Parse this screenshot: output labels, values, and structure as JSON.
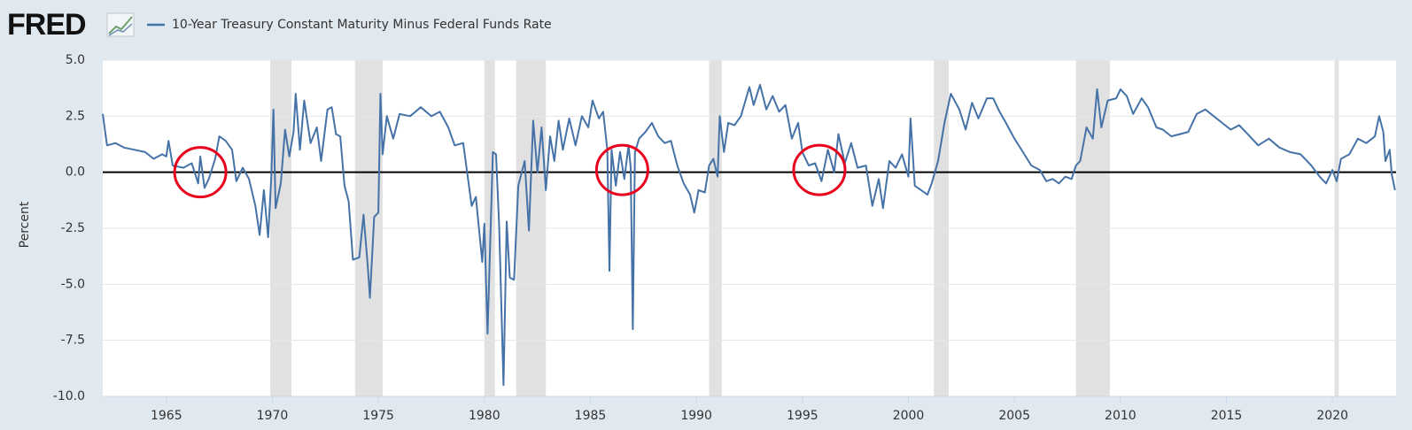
{
  "logo": "FRED",
  "chart_data": {
    "type": "line",
    "title": "10-Year Treasury Constant Maturity Minus Federal Funds Rate",
    "y_label": "Percent",
    "xlim": [
      1962,
      2023
    ],
    "xticks": [
      1965,
      1970,
      1975,
      1980,
      1985,
      1990,
      1995,
      2000,
      2005,
      2010,
      2015,
      2020
    ],
    "ylim": [
      -10,
      5
    ],
    "yticks": [
      {
        "value": 5,
        "label": "5.0"
      },
      {
        "value": 2.5,
        "label": "2.5"
      },
      {
        "value": 0,
        "label": "0.0"
      },
      {
        "value": -2.5,
        "label": "-2.5"
      },
      {
        "value": -5,
        "label": "-5.0"
      },
      {
        "value": -7.5,
        "label": "-7.5"
      },
      {
        "value": -10,
        "label": "-10.0"
      }
    ],
    "grid": true,
    "zero_line": true,
    "recession_color": "#e1e1e1",
    "recessions": [
      [
        1969.9,
        1970.9
      ],
      [
        1973.9,
        1975.2
      ],
      [
        1980.0,
        1980.5
      ],
      [
        1981.5,
        1982.9
      ],
      [
        1990.6,
        1991.2
      ],
      [
        2001.2,
        2001.9
      ],
      [
        2007.9,
        2009.5
      ],
      [
        2020.1,
        2020.3
      ]
    ],
    "highlights": [
      {
        "x": 1966.6,
        "y": 0.0
      },
      {
        "x": 1986.5,
        "y": 0.1
      },
      {
        "x": 1995.8,
        "y": 0.1
      }
    ],
    "highlight_color": "#e8001c",
    "series": [
      {
        "name": "10-Year Treasury Constant Maturity Minus Federal Funds Rate",
        "color": "#4572a7",
        "x": [
          1962.0,
          1962.2,
          1962.6,
          1963.0,
          1963.5,
          1964.0,
          1964.4,
          1964.8,
          1965.0,
          1965.1,
          1965.3,
          1965.8,
          1966.2,
          1966.5,
          1966.6,
          1966.8,
          1967.0,
          1967.3,
          1967.5,
          1967.8,
          1968.1,
          1968.3,
          1968.6,
          1968.9,
          1969.2,
          1969.4,
          1969.6,
          1969.8,
          1969.95,
          1970.05,
          1970.15,
          1970.4,
          1970.6,
          1970.8,
          1971.0,
          1971.1,
          1971.3,
          1971.5,
          1971.8,
          1972.1,
          1972.3,
          1972.6,
          1972.8,
          1973.0,
          1973.2,
          1973.4,
          1973.6,
          1973.8,
          1974.1,
          1974.3,
          1974.5,
          1974.6,
          1974.8,
          1975.0,
          1975.1,
          1975.2,
          1975.4,
          1975.7,
          1976.0,
          1976.5,
          1977.0,
          1977.5,
          1977.9,
          1978.3,
          1978.6,
          1979.0,
          1979.4,
          1979.6,
          1979.9,
          1980.0,
          1980.15,
          1980.4,
          1980.55,
          1980.7,
          1980.9,
          1981.05,
          1981.2,
          1981.4,
          1981.6,
          1981.9,
          1982.1,
          1982.3,
          1982.5,
          1982.7,
          1982.9,
          1983.1,
          1983.3,
          1983.5,
          1983.7,
          1984.0,
          1984.3,
          1984.6,
          1984.9,
          1985.1,
          1985.4,
          1985.6,
          1985.8,
          1985.9,
          1986.0,
          1986.2,
          1986.4,
          1986.6,
          1986.8,
          1986.9,
          1987.0,
          1987.1,
          1987.3,
          1987.6,
          1987.9,
          1988.2,
          1988.5,
          1988.8,
          1989.1,
          1989.4,
          1989.7,
          1989.9,
          1990.1,
          1990.4,
          1990.6,
          1990.8,
          1991.0,
          1991.1,
          1991.3,
          1991.5,
          1991.8,
          1992.1,
          1992.5,
          1992.7,
          1993.0,
          1993.3,
          1993.6,
          1993.9,
          1994.2,
          1994.5,
          1994.8,
          1995.0,
          1995.3,
          1995.6,
          1995.9,
          1996.2,
          1996.5,
          1996.7,
          1997.0,
          1997.3,
          1997.6,
          1998.0,
          1998.3,
          1998.6,
          1998.8,
          1999.1,
          1999.4,
          1999.7,
          2000.0,
          2000.1,
          2000.3,
          2000.6,
          2000.9,
          2001.1,
          2001.4,
          2001.7,
          2002.0,
          2002.4,
          2002.7,
          2003.0,
          2003.3,
          2003.7,
          2004.0,
          2004.3,
          2004.6,
          2005.0,
          2005.4,
          2005.8,
          2006.2,
          2006.5,
          2006.8,
          2007.1,
          2007.4,
          2007.7,
          2007.9,
          2008.1,
          2008.4,
          2008.7,
          2008.9,
          2009.1,
          2009.4,
          2009.8,
          2010.0,
          2010.3,
          2010.6,
          2011.0,
          2011.3,
          2011.7,
          2012.0,
          2012.4,
          2012.8,
          2013.2,
          2013.6,
          2014.0,
          2014.4,
          2014.8,
          2015.2,
          2015.6,
          2016.0,
          2016.5,
          2017.0,
          2017.5,
          2018.0,
          2018.5,
          2019.0,
          2019.4,
          2019.7,
          2020.0,
          2020.2,
          2020.4,
          2020.8,
          2021.2,
          2021.6,
          2022.0,
          2022.2,
          2022.4,
          2022.5,
          2022.7,
          2022.8,
          2022.95
        ],
        "values": [
          2.6,
          1.2,
          1.3,
          1.1,
          1.0,
          0.9,
          0.6,
          0.8,
          0.7,
          1.4,
          0.3,
          0.2,
          0.4,
          -0.5,
          0.7,
          -0.7,
          -0.3,
          0.6,
          1.6,
          1.4,
          1.0,
          -0.4,
          0.2,
          -0.3,
          -1.5,
          -2.8,
          -0.8,
          -2.9,
          -0.2,
          2.8,
          -1.6,
          -0.5,
          1.9,
          0.7,
          1.8,
          3.5,
          1.0,
          3.2,
          1.3,
          2.0,
          0.5,
          2.8,
          2.9,
          1.7,
          1.6,
          -0.6,
          -1.3,
          -3.9,
          -3.8,
          -1.9,
          -4.2,
          -5.6,
          -2.0,
          -1.8,
          3.5,
          0.8,
          2.5,
          1.5,
          2.6,
          2.5,
          2.9,
          2.5,
          2.7,
          2.0,
          1.2,
          1.3,
          -1.5,
          -1.1,
          -4.0,
          -2.3,
          -7.2,
          0.9,
          0.8,
          -2.5,
          -9.5,
          -2.2,
          -4.7,
          -4.8,
          -0.6,
          0.5,
          -2.6,
          2.3,
          0.0,
          2.0,
          -0.8,
          1.6,
          0.5,
          2.3,
          1.0,
          2.4,
          1.2,
          2.5,
          2.0,
          3.2,
          2.4,
          2.7,
          1.0,
          -4.4,
          1.0,
          -0.6,
          0.9,
          -0.3,
          1.2,
          0.2,
          -7.0,
          0.9,
          1.5,
          1.8,
          2.2,
          1.6,
          1.3,
          1.4,
          0.3,
          -0.5,
          -1.0,
          -1.8,
          -0.8,
          -0.9,
          0.3,
          0.6,
          -0.2,
          2.5,
          0.9,
          2.2,
          2.1,
          2.5,
          3.8,
          3.0,
          3.9,
          2.8,
          3.4,
          2.7,
          3.0,
          1.5,
          2.2,
          0.9,
          0.3,
          0.4,
          -0.4,
          1.0,
          0.0,
          1.7,
          0.4,
          1.3,
          0.2,
          0.3,
          -1.5,
          -0.3,
          -1.6,
          0.5,
          0.2,
          0.8,
          -0.2,
          2.4,
          -0.6,
          -0.8,
          -1.0,
          -0.5,
          0.5,
          2.2,
          3.5,
          2.8,
          1.9,
          3.1,
          2.4,
          3.3,
          3.3,
          2.7,
          2.2,
          1.5,
          0.9,
          0.3,
          0.1,
          -0.4,
          -0.3,
          -0.5,
          -0.2,
          -0.3,
          0.3,
          0.5,
          2.0,
          1.5,
          3.7,
          2.0,
          3.2,
          3.3,
          3.7,
          3.4,
          2.6,
          3.3,
          2.9,
          2.0,
          1.9,
          1.6,
          1.7,
          1.8,
          2.6,
          2.8,
          2.5,
          2.2,
          1.9,
          2.1,
          1.7,
          1.2,
          1.5,
          1.1,
          0.9,
          0.8,
          0.3,
          -0.2,
          -0.5,
          0.1,
          -0.4,
          0.6,
          0.8,
          1.5,
          1.3,
          1.6,
          2.5,
          1.8,
          0.5,
          1.0,
          -0.1,
          -0.8
        ]
      }
    ]
  }
}
